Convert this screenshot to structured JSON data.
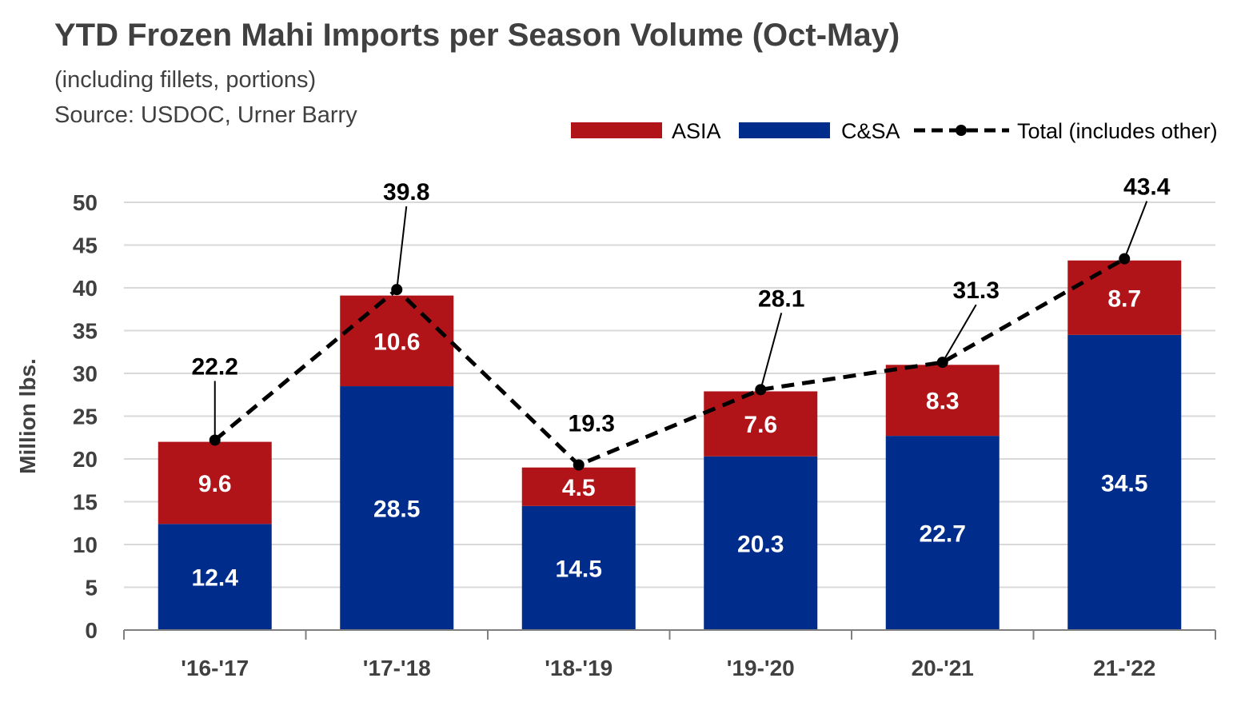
{
  "header": {
    "title": "YTD Frozen Mahi Imports per Season Volume (Oct-May)",
    "subtitle": "(including fillets, portions)",
    "source": "Source: USDOC, Urner Barry"
  },
  "colors": {
    "asia": "#B01419",
    "csa": "#002D8C",
    "total": "#000000",
    "grid": "#D9D9D9",
    "axis_text": "#404040"
  },
  "chart_data": {
    "type": "bar",
    "stacked": true,
    "categories": [
      "'16-'17",
      "'17-'18",
      "'18-'19",
      "'19-'20",
      "20-'21",
      "21-'22"
    ],
    "series": [
      {
        "name": "C&SA",
        "values": [
          12.4,
          28.5,
          14.5,
          20.3,
          22.7,
          34.5
        ]
      },
      {
        "name": "ASIA",
        "values": [
          9.6,
          10.6,
          4.5,
          7.6,
          8.3,
          8.7
        ]
      }
    ],
    "line_series": {
      "name": "Total (includes other)",
      "values": [
        22.2,
        39.8,
        19.3,
        28.1,
        31.3,
        43.4
      ]
    },
    "ylabel": "Million lbs.",
    "xlabel": "",
    "ylim": [
      0,
      50
    ],
    "yticks": [
      0,
      5,
      10,
      15,
      20,
      25,
      30,
      35,
      40,
      45,
      50
    ],
    "grid": true,
    "legend": [
      "ASIA",
      "C&SA",
      "Total (includes other)"
    ],
    "legend_position": "top-right"
  }
}
